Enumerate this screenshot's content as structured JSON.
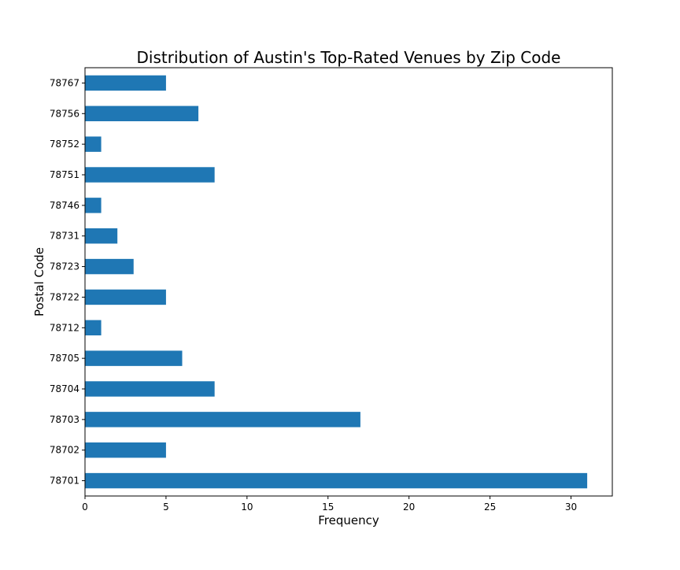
{
  "chart_data": {
    "type": "bar",
    "orientation": "horizontal",
    "title": "Distribution of Austin's Top-Rated Venues by Zip Code",
    "xlabel": "Frequency",
    "ylabel": "Postal Code",
    "categories": [
      "78701",
      "78702",
      "78703",
      "78704",
      "78705",
      "78712",
      "78722",
      "78723",
      "78731",
      "78746",
      "78751",
      "78752",
      "78756",
      "78767"
    ],
    "values": [
      31,
      5,
      17,
      8,
      6,
      1,
      5,
      3,
      2,
      1,
      8,
      1,
      7,
      5
    ],
    "xlim": [
      0,
      32.55
    ],
    "xticks": [
      0,
      5,
      10,
      15,
      20,
      25,
      30
    ],
    "grid": false,
    "legend": "none",
    "bar_color": "#1f77b4"
  }
}
